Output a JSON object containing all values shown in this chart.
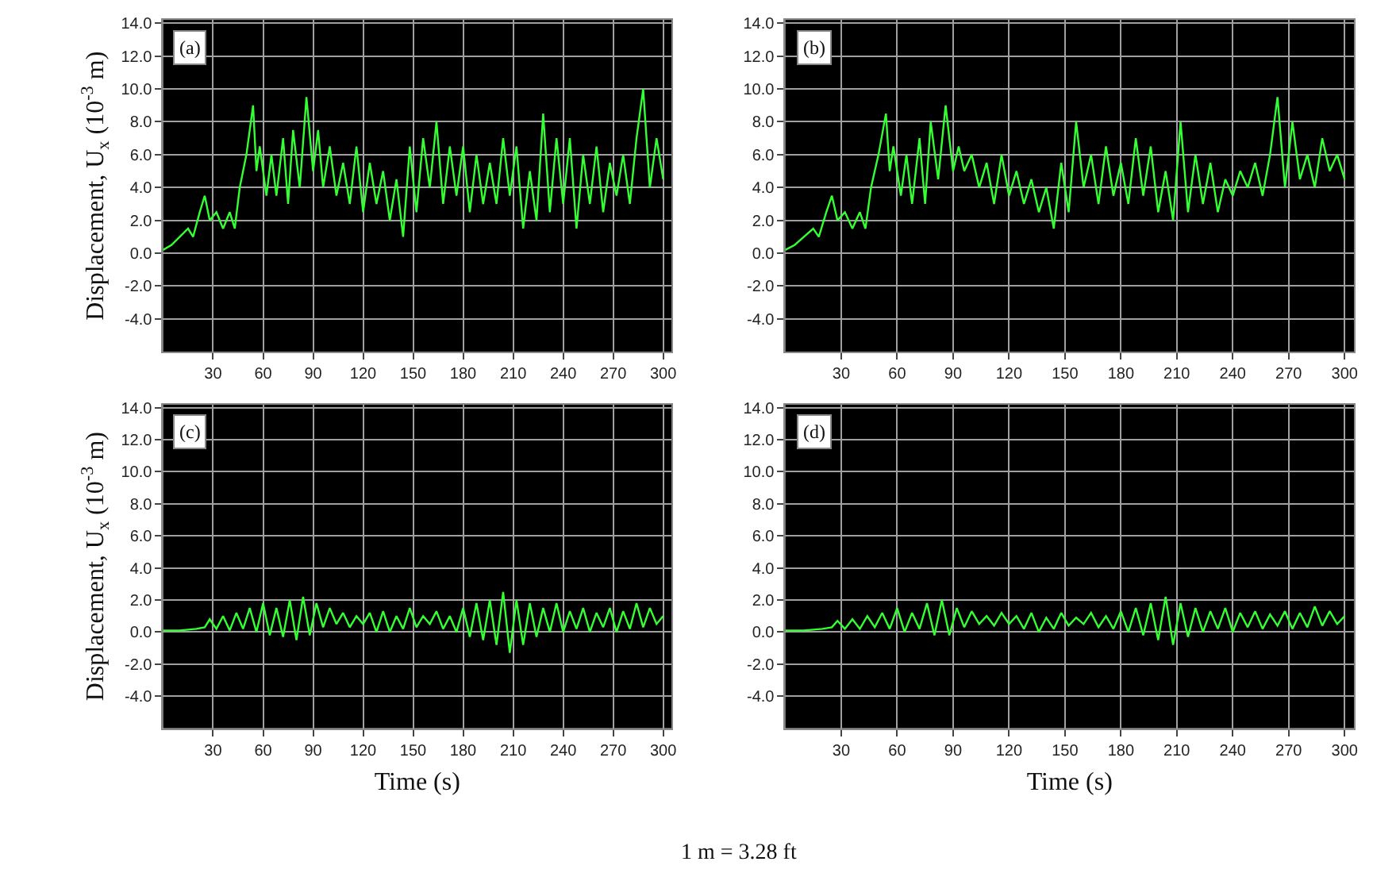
{
  "chart_data": [
    {
      "type": "line",
      "ylabel": "Displacement, U$_{x}$ (10$^{-3}$ m)",
      "annotations": [
        "(a)"
      ],
      "color": "#33ff33",
      "grid": true,
      "line_style": "solid",
      "xlim": [
        0,
        305
      ],
      "ylim": [
        -6,
        14.2
      ],
      "xticks": [
        30,
        60,
        90,
        120,
        150,
        180,
        210,
        240,
        270,
        300
      ],
      "yticks": [
        {
          "value": -4,
          "label": "-4.0"
        },
        {
          "value": -2,
          "label": "-2.0"
        },
        {
          "value": 0,
          "label": "0.0"
        },
        {
          "value": 2,
          "label": "2.0"
        },
        {
          "value": 4,
          "label": "4.0"
        },
        {
          "value": 6,
          "label": "6.0"
        },
        {
          "value": 8,
          "label": "8.0"
        },
        {
          "value": 10,
          "label": "10.0"
        },
        {
          "value": 12,
          "label": "12.0"
        },
        {
          "value": 14,
          "label": "14.0"
        }
      ],
      "x": [
        0,
        5,
        10,
        15,
        18,
        22,
        25,
        28,
        32,
        36,
        40,
        43,
        46,
        50,
        54,
        56,
        58,
        62,
        65,
        68,
        72,
        75,
        78,
        82,
        86,
        90,
        93,
        96,
        100,
        104,
        108,
        112,
        116,
        120,
        124,
        128,
        132,
        136,
        140,
        144,
        148,
        152,
        156,
        160,
        164,
        168,
        172,
        176,
        180,
        184,
        188,
        192,
        196,
        200,
        204,
        208,
        212,
        216,
        220,
        224,
        228,
        232,
        236,
        240,
        244,
        248,
        252,
        256,
        260,
        264,
        268,
        272,
        276,
        280,
        284,
        288,
        292,
        296,
        300
      ],
      "values": [
        0.2,
        0.5,
        1.0,
        1.5,
        1.0,
        2.5,
        3.5,
        2.0,
        2.5,
        1.5,
        2.5,
        1.5,
        4.0,
        6.0,
        9.0,
        5.0,
        6.5,
        3.5,
        6.0,
        3.5,
        7.0,
        3.0,
        7.5,
        4.0,
        9.5,
        5.0,
        7.5,
        4.0,
        6.5,
        3.5,
        5.5,
        3.0,
        6.5,
        2.5,
        5.5,
        3.0,
        5.0,
        2.0,
        4.5,
        1.0,
        6.5,
        2.5,
        7.0,
        4.0,
        8.0,
        3.0,
        6.5,
        3.5,
        6.5,
        2.5,
        6.0,
        3.0,
        5.5,
        3.0,
        7.0,
        3.5,
        6.5,
        1.5,
        5.0,
        2.0,
        8.5,
        2.5,
        7.0,
        3.0,
        7.0,
        1.5,
        6.0,
        3.0,
        6.5,
        2.5,
        5.5,
        3.5,
        6.0,
        3.0,
        7.0,
        10.0,
        4.0,
        7.0,
        4.5
      ]
    },
    {
      "type": "line",
      "annotations": [
        "(b)"
      ],
      "color": "#33ff33",
      "grid": true,
      "line_style": "solid",
      "xlim": [
        0,
        305
      ],
      "ylim": [
        -6,
        14.2
      ],
      "xticks": [
        30,
        60,
        90,
        120,
        150,
        180,
        210,
        240,
        270,
        300
      ],
      "yticks": [
        {
          "value": -4,
          "label": "-4.0"
        },
        {
          "value": -2,
          "label": "-2.0"
        },
        {
          "value": 0,
          "label": "0.0"
        },
        {
          "value": 2,
          "label": "2.0"
        },
        {
          "value": 4,
          "label": "4.0"
        },
        {
          "value": 6,
          "label": "6.0"
        },
        {
          "value": 8,
          "label": "8.0"
        },
        {
          "value": 10,
          "label": "10.0"
        },
        {
          "value": 12,
          "label": "12.0"
        },
        {
          "value": 14,
          "label": "14.0"
        }
      ],
      "x": [
        0,
        5,
        10,
        15,
        18,
        22,
        25,
        28,
        32,
        36,
        40,
        43,
        46,
        50,
        54,
        56,
        58,
        62,
        65,
        68,
        72,
        75,
        78,
        82,
        86,
        90,
        93,
        96,
        100,
        104,
        108,
        112,
        116,
        120,
        124,
        128,
        132,
        136,
        140,
        144,
        148,
        152,
        156,
        160,
        164,
        168,
        172,
        176,
        180,
        184,
        188,
        192,
        196,
        200,
        204,
        208,
        212,
        216,
        220,
        224,
        228,
        232,
        236,
        240,
        244,
        248,
        252,
        256,
        260,
        264,
        268,
        272,
        276,
        280,
        284,
        288,
        292,
        296,
        300
      ],
      "values": [
        0.2,
        0.5,
        1.0,
        1.5,
        1.0,
        2.5,
        3.5,
        2.0,
        2.5,
        1.5,
        2.5,
        1.5,
        4.0,
        6.0,
        8.5,
        5.0,
        6.5,
        3.5,
        6.0,
        3.0,
        7.0,
        3.0,
        8.0,
        4.5,
        9.0,
        5.0,
        6.5,
        5.0,
        6.0,
        4.0,
        5.5,
        3.0,
        6.0,
        3.5,
        5.0,
        3.0,
        4.5,
        2.5,
        4.0,
        1.5,
        5.5,
        2.5,
        8.0,
        4.0,
        6.0,
        3.0,
        6.5,
        3.5,
        5.5,
        3.0,
        7.0,
        3.5,
        6.5,
        2.5,
        5.0,
        2.0,
        8.0,
        2.5,
        6.0,
        3.0,
        5.5,
        2.5,
        4.5,
        3.5,
        5.0,
        4.0,
        5.5,
        3.5,
        6.0,
        9.5,
        4.0,
        8.0,
        4.5,
        6.0,
        4.0,
        7.0,
        5.0,
        6.0,
        4.5
      ]
    },
    {
      "type": "line",
      "ylabel": "Displacement, U$_{x}$ (10$^{-3}$ m)",
      "xlabel": "Time (s)",
      "annotations": [
        "(c)",
        "1 m = 3.28 ft"
      ],
      "color": "#33ff33",
      "grid": true,
      "line_style": "solid",
      "xlim": [
        0,
        305
      ],
      "ylim": [
        -6,
        14.2
      ],
      "xticks": [
        30,
        60,
        90,
        120,
        150,
        180,
        210,
        240,
        270,
        300
      ],
      "yticks": [
        {
          "value": -4,
          "label": "-4.0"
        },
        {
          "value": -2,
          "label": "-2.0"
        },
        {
          "value": 0,
          "label": "0.0"
        },
        {
          "value": 2,
          "label": "2.0"
        },
        {
          "value": 4,
          "label": "4.0"
        },
        {
          "value": 6,
          "label": "6.0"
        },
        {
          "value": 8,
          "label": "8.0"
        },
        {
          "value": 10,
          "label": "10.0"
        },
        {
          "value": 12,
          "label": "12.0"
        },
        {
          "value": 14,
          "label": "14.0"
        }
      ],
      "x": [
        0,
        10,
        20,
        25,
        28,
        32,
        36,
        40,
        44,
        48,
        52,
        56,
        60,
        64,
        68,
        72,
        76,
        80,
        84,
        88,
        92,
        96,
        100,
        104,
        108,
        112,
        116,
        120,
        124,
        128,
        132,
        136,
        140,
        144,
        148,
        152,
        156,
        160,
        164,
        168,
        172,
        176,
        180,
        184,
        188,
        192,
        196,
        200,
        204,
        208,
        212,
        216,
        220,
        224,
        228,
        232,
        236,
        240,
        244,
        248,
        252,
        256,
        260,
        264,
        268,
        272,
        276,
        280,
        284,
        288,
        292,
        296,
        300
      ],
      "values": [
        0.1,
        0.1,
        0.2,
        0.3,
        0.8,
        0.2,
        1.0,
        0.1,
        1.2,
        0.2,
        1.5,
        0.0,
        1.8,
        -0.2,
        1.5,
        -0.3,
        2.0,
        -0.5,
        2.2,
        -0.2,
        1.8,
        0.3,
        1.5,
        0.5,
        1.2,
        0.3,
        1.0,
        0.5,
        1.2,
        0.0,
        1.3,
        0.0,
        1.0,
        0.2,
        1.5,
        0.3,
        1.0,
        0.5,
        1.3,
        0.2,
        1.0,
        0.0,
        1.5,
        -0.3,
        1.8,
        -0.5,
        2.0,
        -0.8,
        2.5,
        -1.3,
        2.0,
        -0.8,
        1.8,
        -0.3,
        1.5,
        0.0,
        1.8,
        0.0,
        1.3,
        0.2,
        1.5,
        0.0,
        1.2,
        0.3,
        1.5,
        0.0,
        1.3,
        0.2,
        1.8,
        0.3,
        1.5,
        0.5,
        1.0
      ]
    },
    {
      "type": "line",
      "xlabel": "Time (s)",
      "annotations": [
        "(d)"
      ],
      "color": "#33ff33",
      "grid": true,
      "line_style": "solid",
      "xlim": [
        0,
        305
      ],
      "ylim": [
        -6,
        14.2
      ],
      "xticks": [
        30,
        60,
        90,
        120,
        150,
        180,
        210,
        240,
        270,
        300
      ],
      "yticks": [
        {
          "value": -4,
          "label": "-4.0"
        },
        {
          "value": -2,
          "label": "-2.0"
        },
        {
          "value": 0,
          "label": "0.0"
        },
        {
          "value": 2,
          "label": "2.0"
        },
        {
          "value": 4,
          "label": "4.0"
        },
        {
          "value": 6,
          "label": "6.0"
        },
        {
          "value": 8,
          "label": "8.0"
        },
        {
          "value": 10,
          "label": "10.0"
        },
        {
          "value": 12,
          "label": "12.0"
        },
        {
          "value": 14,
          "label": "14.0"
        }
      ],
      "x": [
        0,
        10,
        20,
        25,
        28,
        32,
        36,
        40,
        44,
        48,
        52,
        56,
        60,
        64,
        68,
        72,
        76,
        80,
        84,
        88,
        92,
        96,
        100,
        104,
        108,
        112,
        116,
        120,
        124,
        128,
        132,
        136,
        140,
        144,
        148,
        152,
        156,
        160,
        164,
        168,
        172,
        176,
        180,
        184,
        188,
        192,
        196,
        200,
        204,
        208,
        212,
        216,
        220,
        224,
        228,
        232,
        236,
        240,
        244,
        248,
        252,
        256,
        260,
        264,
        268,
        272,
        276,
        280,
        284,
        288,
        292,
        296,
        300
      ],
      "values": [
        0.1,
        0.1,
        0.2,
        0.3,
        0.7,
        0.2,
        0.8,
        0.2,
        1.0,
        0.3,
        1.2,
        0.2,
        1.5,
        0.0,
        1.2,
        0.2,
        1.8,
        -0.2,
        2.0,
        -0.2,
        1.5,
        0.3,
        1.3,
        0.5,
        1.0,
        0.4,
        1.2,
        0.5,
        1.0,
        0.2,
        1.2,
        0.0,
        0.9,
        0.2,
        1.2,
        0.4,
        0.9,
        0.5,
        1.2,
        0.3,
        1.0,
        0.2,
        1.3,
        0.0,
        1.5,
        -0.2,
        1.8,
        -0.5,
        2.2,
        -0.8,
        1.8,
        -0.3,
        1.5,
        0.0,
        1.3,
        0.2,
        1.5,
        0.0,
        1.2,
        0.3,
        1.3,
        0.2,
        1.1,
        0.4,
        1.3,
        0.2,
        1.2,
        0.3,
        1.6,
        0.4,
        1.3,
        0.5,
        1.0
      ]
    }
  ]
}
